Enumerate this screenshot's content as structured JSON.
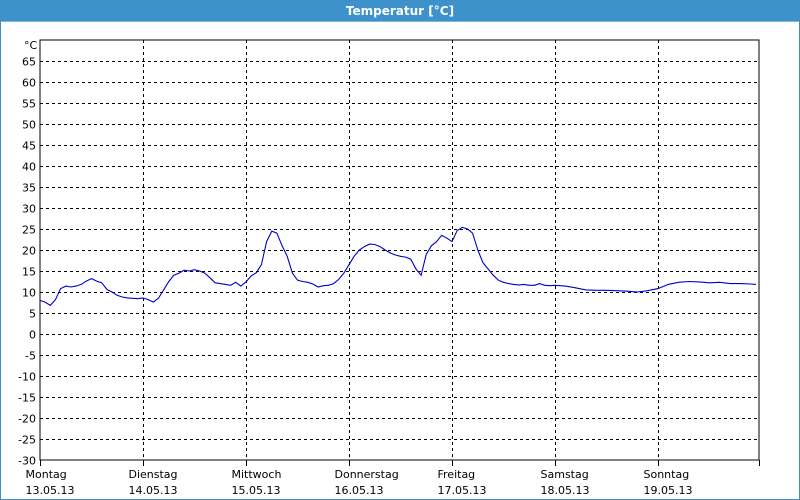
{
  "window": {
    "title": "Temperatur [°C]"
  },
  "chart_data": {
    "type": "line",
    "title": "Temperatur [°C]",
    "ylabel": "°C",
    "xlabel": "",
    "ylim": [
      -30,
      70
    ],
    "yticks": [
      65,
      60,
      55,
      50,
      45,
      40,
      35,
      30,
      25,
      20,
      15,
      10,
      5,
      0,
      -5,
      -10,
      -15,
      -20,
      -25,
      -30
    ],
    "xlim": [
      0,
      7
    ],
    "grid": true,
    "legend": "none",
    "colors": {
      "line": "#0000cc",
      "grid": "#000000",
      "title_bar": "#3d92cb"
    },
    "x_ticks": [
      {
        "x": 0,
        "day": "Montag",
        "date": "13.05.13"
      },
      {
        "x": 1,
        "day": "Dienstag",
        "date": "14.05.13"
      },
      {
        "x": 2,
        "day": "Mittwoch",
        "date": "15.05.13"
      },
      {
        "x": 3,
        "day": "Donnerstag",
        "date": "16.05.13"
      },
      {
        "x": 4,
        "day": "Freitag",
        "date": "17.05.13"
      },
      {
        "x": 5,
        "day": "Samstag",
        "date": "18.05.13"
      },
      {
        "x": 6,
        "day": "Sonntag",
        "date": "19.05.13"
      }
    ],
    "series": [
      {
        "x": [
          0.0,
          0.05,
          0.1,
          0.15,
          0.2,
          0.25,
          0.3,
          0.35,
          0.4,
          0.45,
          0.5,
          0.55,
          0.6,
          0.65,
          0.7,
          0.75,
          0.8,
          0.85,
          0.9,
          0.95,
          1.0,
          1.05,
          1.1,
          1.15,
          1.2,
          1.25,
          1.3,
          1.35,
          1.4,
          1.45,
          1.5,
          1.55,
          1.6,
          1.65,
          1.7,
          1.75,
          1.8,
          1.85,
          1.9,
          1.95,
          2.0,
          2.05,
          2.1,
          2.15,
          2.2,
          2.25,
          2.3,
          2.35,
          2.4,
          2.45,
          2.5,
          2.55,
          2.6,
          2.65,
          2.7,
          2.75,
          2.8,
          2.85,
          2.9,
          2.95,
          3.0,
          3.05,
          3.1,
          3.15,
          3.2,
          3.25,
          3.3,
          3.35,
          3.4,
          3.45,
          3.5,
          3.55,
          3.6,
          3.65,
          3.7,
          3.75,
          3.8,
          3.85,
          3.9,
          3.95,
          4.0,
          4.05,
          4.1,
          4.15,
          4.2,
          4.25,
          4.3,
          4.35,
          4.4,
          4.45,
          4.5,
          4.55,
          4.6,
          4.65,
          4.7,
          4.75,
          4.8,
          4.85,
          4.9,
          4.95,
          5.0,
          5.1,
          5.2,
          5.3,
          5.4,
          5.5,
          5.6,
          5.7,
          5.8,
          5.9,
          6.0,
          6.1,
          6.2,
          6.3,
          6.4,
          6.5,
          6.6,
          6.7,
          6.8,
          6.9,
          6.95
        ],
        "y": [
          8,
          7.6,
          6.8,
          8.2,
          10.8,
          11.4,
          11.2,
          11.4,
          11.8,
          12.6,
          13.2,
          12.6,
          12.2,
          10.6,
          10.0,
          9.2,
          8.8,
          8.6,
          8.5,
          8.4,
          8.6,
          8.2,
          7.6,
          8.5,
          10.5,
          12.5,
          14.0,
          14.5,
          15.2,
          15.0,
          15.3,
          15.0,
          14.5,
          13.4,
          12.2,
          12.0,
          11.8,
          11.6,
          12.3,
          11.4,
          12.4,
          13.8,
          14.6,
          16.5,
          22.0,
          24.5,
          24.0,
          21.0,
          18.5,
          14.5,
          12.8,
          12.5,
          12.3,
          11.9,
          11.2,
          11.5,
          11.6,
          12.0,
          13.0,
          14.5,
          16.5,
          18.5,
          20.0,
          20.8,
          21.4,
          21.3,
          20.8,
          20.0,
          19.3,
          18.8,
          18.5,
          18.3,
          17.8,
          15.5,
          14.0,
          19.0,
          21.0,
          22.0,
          23.5,
          22.8,
          22.0,
          24.6,
          25.4,
          25.0,
          24.0,
          20.0,
          17.0,
          15.5,
          14.0,
          12.8,
          12.3,
          12.0,
          11.8,
          11.7,
          11.8,
          11.6,
          11.6,
          12.0,
          11.6,
          11.5,
          11.6,
          11.4,
          11.0,
          10.5,
          10.4,
          10.4,
          10.3,
          10.2,
          10.0,
          10.3,
          10.8,
          11.8,
          12.3,
          12.5,
          12.4,
          12.2,
          12.3,
          12.0,
          12.0,
          11.9,
          11.8
        ]
      }
    ]
  }
}
